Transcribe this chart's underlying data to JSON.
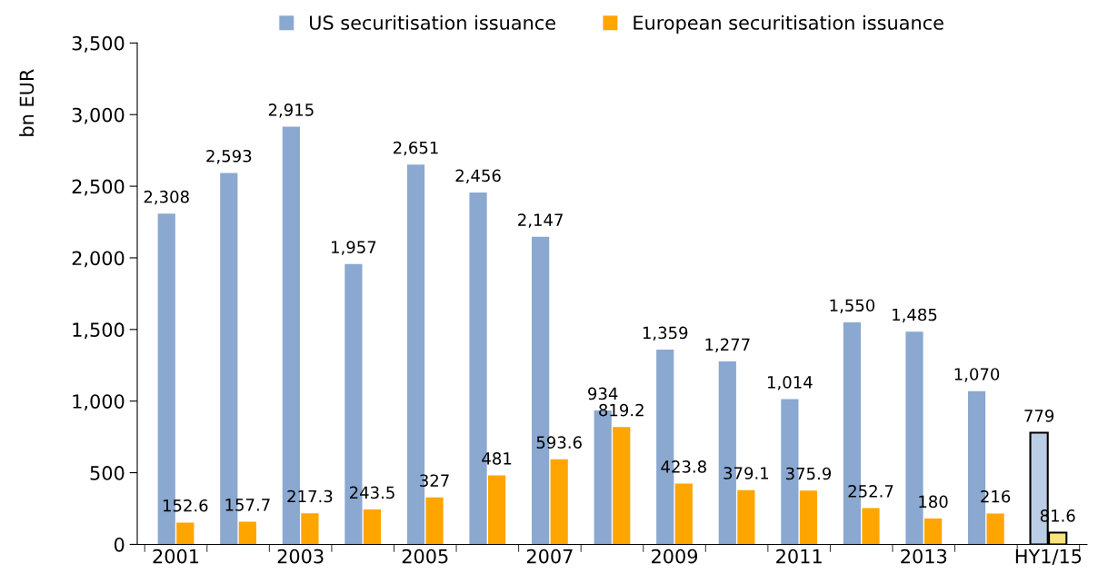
{
  "chart_data": {
    "type": "bar",
    "ylabel": "bn EUR",
    "categories": [
      "2001",
      null,
      "2003",
      null,
      "2005",
      null,
      "2007",
      null,
      "2009",
      null,
      "2011",
      null,
      "2013",
      null,
      "HY1/15"
    ],
    "series": [
      {
        "name": "US securitisation issuance",
        "color": "#8aa8d0",
        "colors": [
          "#8aa8d0",
          "#8aa8d0",
          "#8aa8d0",
          "#8aa8d0",
          "#8aa8d0",
          "#8aa8d0",
          "#8aa8d0",
          "#8aa8d0",
          "#8aa8d0",
          "#8aa8d0",
          "#8aa8d0",
          "#8aa8d0",
          "#8aa8d0",
          "#8aa8d0",
          "#bccde6"
        ],
        "values": [
          2308,
          2593,
          2915,
          1957,
          2651,
          2456,
          2147,
          934,
          1359,
          1277,
          1014,
          1550,
          1485,
          1070,
          779
        ],
        "value_labels": [
          "2,308",
          "2,593",
          "2,915",
          "1,957",
          "2,651",
          "2,456",
          "2,147",
          "934",
          "1,359",
          "1,277",
          "1,014",
          "1,550",
          "1,485",
          "1,070",
          "779"
        ]
      },
      {
        "name": "European securitisation issuance",
        "color": "#ffa500",
        "colors": [
          "#ffa500",
          "#ffa500",
          "#ffa500",
          "#ffa500",
          "#ffa500",
          "#ffa500",
          "#ffa500",
          "#ffa500",
          "#ffa500",
          "#ffa500",
          "#ffa500",
          "#ffa500",
          "#ffa500",
          "#ffa500",
          "#fbe27c"
        ],
        "values": [
          152.6,
          157.7,
          217.3,
          243.5,
          327,
          481,
          593.6,
          819.2,
          423.8,
          379.1,
          375.9,
          252.7,
          180,
          216,
          81.6
        ],
        "value_labels": [
          "152.6",
          "157.7",
          "217.3",
          "243.5",
          "327",
          "481",
          "593.6",
          "819.2",
          "423.8",
          "379.1",
          "375.9",
          "252.7",
          "180",
          "216",
          "81.6"
        ]
      }
    ],
    "ylim": [
      0,
      3500
    ],
    "yticks": [
      {
        "value": 0,
        "label": "0"
      },
      {
        "value": 500,
        "label": "500"
      },
      {
        "value": 1000,
        "label": "1,000"
      },
      {
        "value": 1500,
        "label": "1,500"
      },
      {
        "value": 2000,
        "label": "2,000"
      },
      {
        "value": 2500,
        "label": "2,500"
      },
      {
        "value": 3000,
        "label": "3,000"
      },
      {
        "value": 3500,
        "label": "3,500"
      }
    ],
    "grid": false,
    "legend": "top"
  }
}
